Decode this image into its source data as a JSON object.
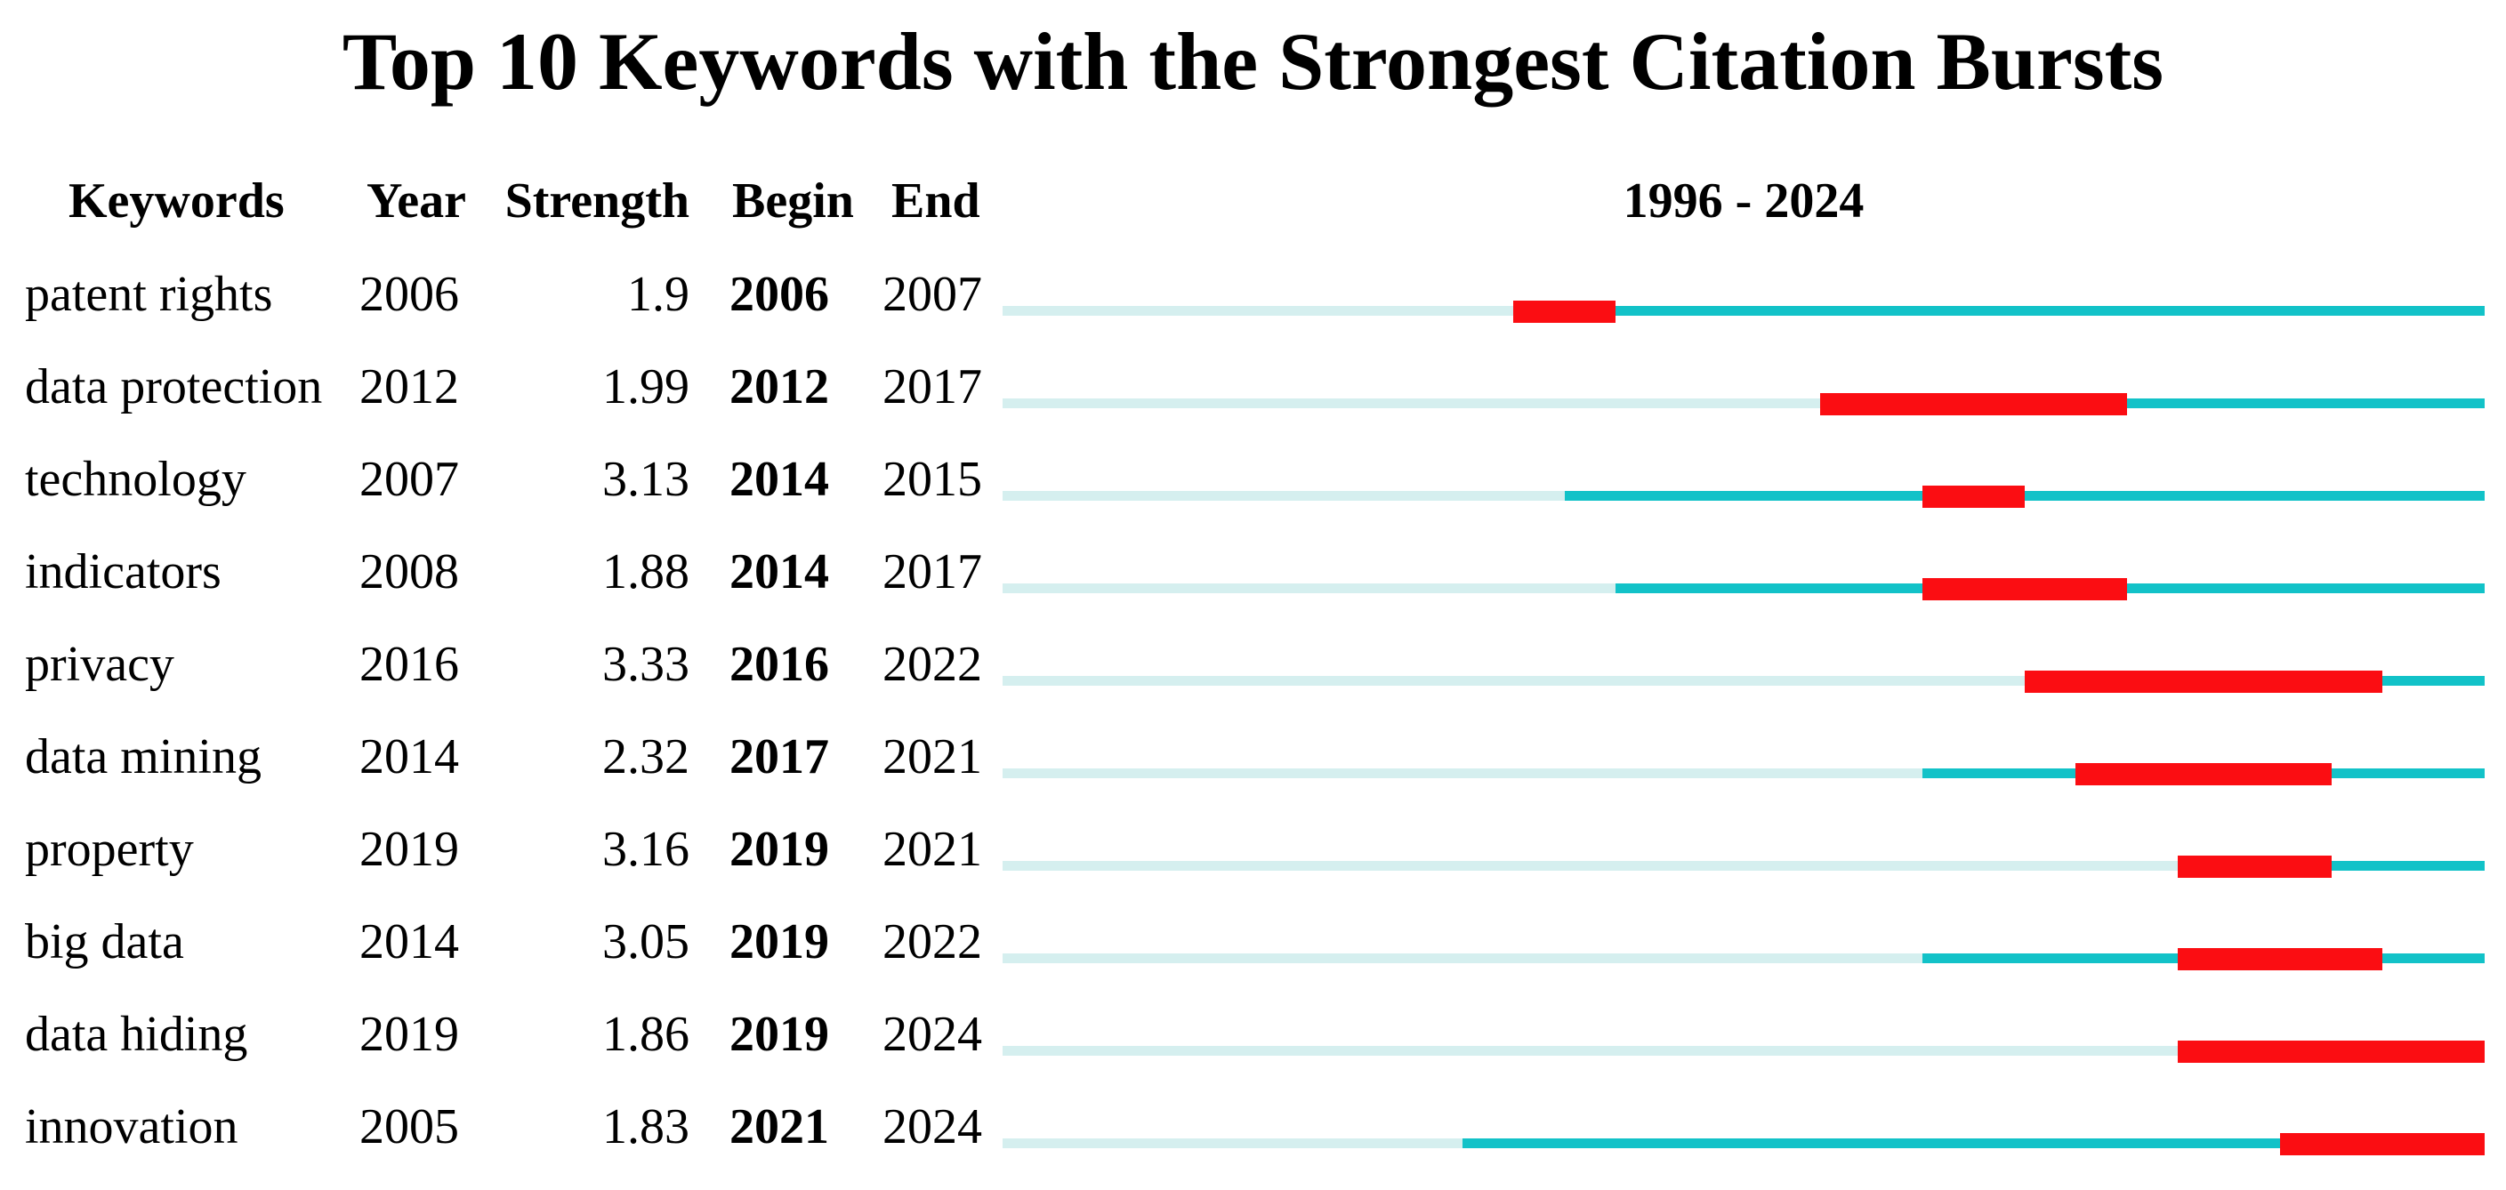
{
  "chart_data": {
    "type": "table",
    "title": "Top 10 Keywords with the Strongest Citation Bursts",
    "columns": {
      "keyword": "Keywords",
      "year": "Year",
      "strength": "Strength",
      "begin": "Begin",
      "end": "End"
    },
    "timeline": {
      "label": "1996 - 2024",
      "start_year": 1996,
      "end_year": 2024
    },
    "colors": {
      "pre_period_line": "#d5efef",
      "active_period_line": "#12c2c8",
      "burst_segment": "#fb0d12",
      "text": "#000000",
      "background": "#ffffff"
    },
    "rows": [
      {
        "keyword": "patent rights",
        "year": "2006",
        "strength": "1.9",
        "begin": "2006",
        "end": "2007",
        "year_num": 2006,
        "begin_num": 2006,
        "end_num": 2007
      },
      {
        "keyword": "data protection",
        "year": "2012",
        "strength": "1.99",
        "begin": "2012",
        "end": "2017",
        "year_num": 2012,
        "begin_num": 2012,
        "end_num": 2017
      },
      {
        "keyword": "technology",
        "year": "2007",
        "strength": "3.13",
        "begin": "2014",
        "end": "2015",
        "year_num": 2007,
        "begin_num": 2014,
        "end_num": 2015
      },
      {
        "keyword": "indicators",
        "year": "2008",
        "strength": "1.88",
        "begin": "2014",
        "end": "2017",
        "year_num": 2008,
        "begin_num": 2014,
        "end_num": 2017
      },
      {
        "keyword": "privacy",
        "year": "2016",
        "strength": "3.33",
        "begin": "2016",
        "end": "2022",
        "year_num": 2016,
        "begin_num": 2016,
        "end_num": 2022
      },
      {
        "keyword": "data mining",
        "year": "2014",
        "strength": "2.32",
        "begin": "2017",
        "end": "2021",
        "year_num": 2014,
        "begin_num": 2017,
        "end_num": 2021
      },
      {
        "keyword": "property",
        "year": "2019",
        "strength": "3.16",
        "begin": "2019",
        "end": "2021",
        "year_num": 2019,
        "begin_num": 2019,
        "end_num": 2021
      },
      {
        "keyword": "big data",
        "year": "2014",
        "strength": "3.05",
        "begin": "2019",
        "end": "2022",
        "year_num": 2014,
        "begin_num": 2019,
        "end_num": 2022
      },
      {
        "keyword": "data hiding",
        "year": "2019",
        "strength": "1.86",
        "begin": "2019",
        "end": "2024",
        "year_num": 2019,
        "begin_num": 2019,
        "end_num": 2024
      },
      {
        "keyword": "innovation",
        "year": "2005",
        "strength": "1.83",
        "begin": "2021",
        "end": "2024",
        "year_num": 2005,
        "begin_num": 2021,
        "end_num": 2024
      }
    ]
  }
}
